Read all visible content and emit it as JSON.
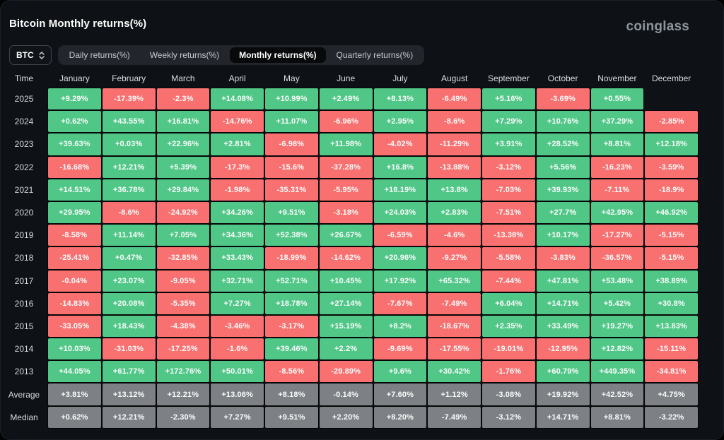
{
  "header": {
    "title": "Bitcoin Monthly returns(%)",
    "logo": "coinglass"
  },
  "controls": {
    "symbol_select": {
      "value": "BTC",
      "icon": "updown-chevron-icon"
    },
    "tabs": [
      {
        "label": "Daily returns(%)",
        "active": false
      },
      {
        "label": "Weekly returns(%)",
        "active": false
      },
      {
        "label": "Monthly returns(%)",
        "active": true
      },
      {
        "label": "Quarterly returns(%)",
        "active": false
      }
    ]
  },
  "colors": {
    "positive": "#50c787",
    "negative": "#f97070",
    "summary": "#7d8085",
    "background": "#0e1116"
  },
  "table": {
    "time_header": "Time",
    "months": [
      "January",
      "February",
      "March",
      "April",
      "May",
      "June",
      "July",
      "August",
      "September",
      "October",
      "November",
      "December"
    ],
    "rows": [
      {
        "label": "2025",
        "type": "year",
        "values": [
          "+9.29%",
          "-17.39%",
          "-2.3%",
          "+14.08%",
          "+10.99%",
          "+2.49%",
          "+8.13%",
          "-6.49%",
          "+5.16%",
          "-3.69%",
          "+0.55%",
          ""
        ]
      },
      {
        "label": "2024",
        "type": "year",
        "values": [
          "+0.62%",
          "+43.55%",
          "+16.81%",
          "-14.76%",
          "+11.07%",
          "-6.96%",
          "+2.95%",
          "-8.6%",
          "+7.29%",
          "+10.76%",
          "+37.29%",
          "-2.85%"
        ]
      },
      {
        "label": "2023",
        "type": "year",
        "values": [
          "+39.63%",
          "+0.03%",
          "+22.96%",
          "+2.81%",
          "-6.98%",
          "+11.98%",
          "-4.02%",
          "-11.29%",
          "+3.91%",
          "+28.52%",
          "+8.81%",
          "+12.18%"
        ]
      },
      {
        "label": "2022",
        "type": "year",
        "values": [
          "-16.68%",
          "+12.21%",
          "+5.39%",
          "-17.3%",
          "-15.6%",
          "-37.28%",
          "+16.8%",
          "-13.88%",
          "-3.12%",
          "+5.56%",
          "-16.23%",
          "-3.59%"
        ]
      },
      {
        "label": "2021",
        "type": "year",
        "values": [
          "+14.51%",
          "+36.78%",
          "+29.84%",
          "-1.98%",
          "-35.31%",
          "-5.95%",
          "+18.19%",
          "+13.8%",
          "-7.03%",
          "+39.93%",
          "-7.11%",
          "-18.9%"
        ]
      },
      {
        "label": "2020",
        "type": "year",
        "values": [
          "+29.95%",
          "-8.6%",
          "-24.92%",
          "+34.26%",
          "+9.51%",
          "-3.18%",
          "+24.03%",
          "+2.83%",
          "-7.51%",
          "+27.7%",
          "+42.95%",
          "+46.92%"
        ]
      },
      {
        "label": "2019",
        "type": "year",
        "values": [
          "-8.58%",
          "+11.14%",
          "+7.05%",
          "+34.36%",
          "+52.38%",
          "+26.67%",
          "-6.59%",
          "-4.6%",
          "-13.38%",
          "+10.17%",
          "-17.27%",
          "-5.15%"
        ]
      },
      {
        "label": "2018",
        "type": "year",
        "values": [
          "-25.41%",
          "+0.47%",
          "-32.85%",
          "+33.43%",
          "-18.99%",
          "-14.62%",
          "+20.96%",
          "-9.27%",
          "-5.58%",
          "-3.83%",
          "-36.57%",
          "-5.15%"
        ]
      },
      {
        "label": "2017",
        "type": "year",
        "values": [
          "-0.04%",
          "+23.07%",
          "-9.05%",
          "+32.71%",
          "+52.71%",
          "+10.45%",
          "+17.92%",
          "+65.32%",
          "-7.44%",
          "+47.81%",
          "+53.48%",
          "+38.89%"
        ]
      },
      {
        "label": "2016",
        "type": "year",
        "values": [
          "-14.83%",
          "+20.08%",
          "-5.35%",
          "+7.27%",
          "+18.78%",
          "+27.14%",
          "-7.67%",
          "-7.49%",
          "+6.04%",
          "+14.71%",
          "+5.42%",
          "+30.8%"
        ]
      },
      {
        "label": "2015",
        "type": "year",
        "values": [
          "-33.05%",
          "+18.43%",
          "-4.38%",
          "-3.46%",
          "-3.17%",
          "+15.19%",
          "+8.2%",
          "-18.67%",
          "+2.35%",
          "+33.49%",
          "+19.27%",
          "+13.83%"
        ]
      },
      {
        "label": "2014",
        "type": "year",
        "values": [
          "+10.03%",
          "-31.03%",
          "-17.25%",
          "-1.6%",
          "+39.46%",
          "+2.2%",
          "-9.69%",
          "-17.55%",
          "-19.01%",
          "-12.95%",
          "+12.82%",
          "-15.11%"
        ]
      },
      {
        "label": "2013",
        "type": "year",
        "values": [
          "+44.05%",
          "+61.77%",
          "+172.76%",
          "+50.01%",
          "-8.56%",
          "-29.89%",
          "+9.6%",
          "+30.42%",
          "-1.76%",
          "+60.79%",
          "+449.35%",
          "-34.81%"
        ]
      },
      {
        "label": "Average",
        "type": "summary",
        "values": [
          "+3.81%",
          "+13.12%",
          "+12.21%",
          "+13.06%",
          "+8.18%",
          "-0.14%",
          "+7.60%",
          "+1.12%",
          "-3.08%",
          "+19.92%",
          "+42.52%",
          "+4.75%"
        ]
      },
      {
        "label": "Median",
        "type": "summary",
        "values": [
          "+0.62%",
          "+12.21%",
          "-2.30%",
          "+7.27%",
          "+9.51%",
          "+2.20%",
          "+8.20%",
          "-7.49%",
          "-3.12%",
          "+14.71%",
          "+8.81%",
          "-3.22%"
        ]
      }
    ]
  }
}
